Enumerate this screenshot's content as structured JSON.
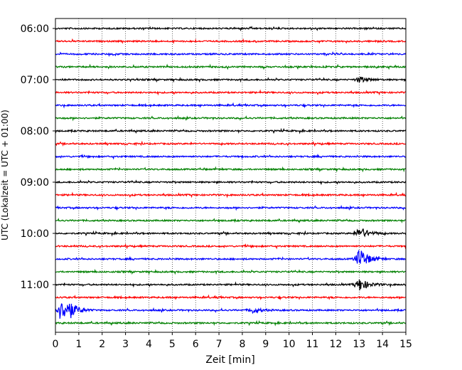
{
  "chart_data": {
    "type": "line",
    "title": "",
    "xlabel": "Zeit  [min]",
    "ylabel": "UTC (Lokalzeit = UTC + 01:00)",
    "xlim": [
      0,
      15
    ],
    "x_ticks": [
      "0",
      "1",
      "2",
      "3",
      "4",
      "5",
      "6",
      "7",
      "8",
      "9",
      "10",
      "11",
      "12",
      "13",
      "14",
      "15"
    ],
    "y_ticks": [
      "06:00",
      "07:00",
      "08:00",
      "09:00",
      "10:00",
      "11:00"
    ],
    "grid": "vertical dotted",
    "trace_colors": [
      "#000000",
      "#ff0000",
      "#0000ff",
      "#008000"
    ],
    "traces": [
      {
        "start": "06:00",
        "color": "#000000"
      },
      {
        "start": "06:15",
        "color": "#ff0000"
      },
      {
        "start": "06:30",
        "color": "#0000ff"
      },
      {
        "start": "06:45",
        "color": "#008000"
      },
      {
        "start": "07:00",
        "color": "#000000",
        "event_minutes": [
          13.0
        ]
      },
      {
        "start": "07:15",
        "color": "#ff0000"
      },
      {
        "start": "07:30",
        "color": "#0000ff"
      },
      {
        "start": "07:45",
        "color": "#008000"
      },
      {
        "start": "08:00",
        "color": "#000000"
      },
      {
        "start": "08:15",
        "color": "#ff0000"
      },
      {
        "start": "08:30",
        "color": "#0000ff"
      },
      {
        "start": "08:45",
        "color": "#008000"
      },
      {
        "start": "09:00",
        "color": "#000000"
      },
      {
        "start": "09:15",
        "color": "#ff0000"
      },
      {
        "start": "09:30",
        "color": "#0000ff"
      },
      {
        "start": "09:45",
        "color": "#008000"
      },
      {
        "start": "10:00",
        "color": "#000000",
        "event_minutes": [
          13.0
        ]
      },
      {
        "start": "10:15",
        "color": "#ff0000"
      },
      {
        "start": "10:30",
        "color": "#0000ff",
        "event_minutes": [
          13.0
        ]
      },
      {
        "start": "10:45",
        "color": "#008000"
      },
      {
        "start": "11:00",
        "color": "#000000",
        "event_minutes": [
          13.0
        ]
      },
      {
        "start": "11:15",
        "color": "#ff0000"
      },
      {
        "start": "11:30",
        "color": "#0000ff",
        "event_minutes": [
          0.2,
          0.5,
          8.4
        ]
      },
      {
        "start": "11:45",
        "color": "#008000"
      }
    ]
  }
}
